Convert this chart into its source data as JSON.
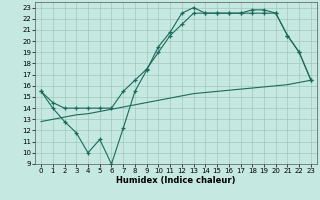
{
  "xlabel": "Humidex (Indice chaleur)",
  "bg_color": "#c5e8e0",
  "line_color": "#1a6b5a",
  "line1_x": [
    0,
    1,
    2,
    3,
    4,
    5,
    6,
    7,
    8,
    9,
    10,
    11,
    12,
    13,
    14,
    15,
    16,
    17,
    18,
    19,
    20,
    21,
    22,
    23
  ],
  "line1_y": [
    15.5,
    14.0,
    12.8,
    11.8,
    10.0,
    11.2,
    9.0,
    12.2,
    15.5,
    17.4,
    19.5,
    20.8,
    22.5,
    23.0,
    22.5,
    22.5,
    22.5,
    22.5,
    22.8,
    22.8,
    22.5,
    20.5,
    19.0,
    16.5
  ],
  "line2_x": [
    0,
    1,
    2,
    3,
    4,
    5,
    6,
    7,
    8,
    9,
    10,
    11,
    12,
    13,
    14,
    15,
    16,
    17,
    18,
    19,
    20,
    21,
    22,
    23
  ],
  "line2_y": [
    15.5,
    14.5,
    14.0,
    14.0,
    14.0,
    14.0,
    14.0,
    15.5,
    16.5,
    17.5,
    19.0,
    20.5,
    21.5,
    22.5,
    22.5,
    22.5,
    22.5,
    22.5,
    22.5,
    22.5,
    22.5,
    20.5,
    19.0,
    16.5
  ],
  "line3_x": [
    0,
    1,
    2,
    3,
    4,
    5,
    6,
    7,
    8,
    9,
    10,
    11,
    12,
    13,
    14,
    15,
    16,
    17,
    18,
    19,
    20,
    21,
    22,
    23
  ],
  "line3_y": [
    12.8,
    13.0,
    13.2,
    13.4,
    13.5,
    13.7,
    13.9,
    14.1,
    14.3,
    14.5,
    14.7,
    14.9,
    15.1,
    15.3,
    15.4,
    15.5,
    15.6,
    15.7,
    15.8,
    15.9,
    16.0,
    16.1,
    16.3,
    16.5
  ],
  "xlim": [
    -0.5,
    23.5
  ],
  "ylim": [
    9,
    23.5
  ],
  "xticks": [
    0,
    1,
    2,
    3,
    4,
    5,
    6,
    7,
    8,
    9,
    10,
    11,
    12,
    13,
    14,
    15,
    16,
    17,
    18,
    19,
    20,
    21,
    22,
    23
  ],
  "yticks": [
    9,
    10,
    11,
    12,
    13,
    14,
    15,
    16,
    17,
    18,
    19,
    20,
    21,
    22,
    23
  ],
  "xlabel_fontsize": 6,
  "tick_fontsize": 5
}
